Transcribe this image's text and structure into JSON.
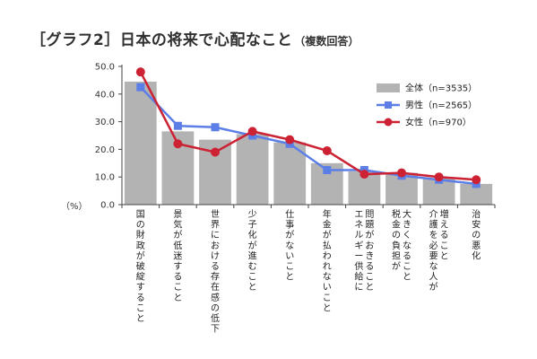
{
  "title": "［グラフ2］日本の将来で心配なこと",
  "subtitle": "（複数回答）",
  "ylabel": "（%）",
  "chart_data": {
    "type": "bar",
    "categories": [
      "国の財政が破綻すること",
      "景気が低迷すること",
      "世界における存在感の低下",
      "少子化が進むこと",
      "仕事がないこと",
      "年金が払われないこと",
      "問題がおきることエネルギー供給に",
      "大きくなること税金の負担が",
      "増えること介護を必要な人が",
      "治安の悪化"
    ],
    "category_lines": [
      [
        "国の財政が破綻すること"
      ],
      [
        "景気が低迷すること"
      ],
      [
        "世界における存在感の低下"
      ],
      [
        "少子化が進むこと"
      ],
      [
        "仕事がないこと"
      ],
      [
        "年金が払われないこと"
      ],
      [
        "問題がおきること",
        "エネルギー供給に"
      ],
      [
        "大きくなること",
        "税金の負担が"
      ],
      [
        "増えること",
        "介護を必要な人が"
      ],
      [
        "治安の悪化"
      ]
    ],
    "series": [
      {
        "name": "全体（n=3535）",
        "kind": "bar",
        "color": "#b3b3b3",
        "values": [
          44.5,
          26.5,
          23.5,
          25.5,
          22.5,
          15.0,
          12.0,
          11.5,
          9.5,
          7.5
        ]
      },
      {
        "name": "男性（n=2565）",
        "kind": "line",
        "color": "#5b7fe6",
        "values": [
          42.5,
          28.5,
          28.0,
          25.0,
          22.0,
          12.5,
          12.5,
          10.5,
          9.0,
          7.5
        ]
      },
      {
        "name": "女性（n=970）",
        "kind": "line",
        "color": "#cc2233",
        "values": [
          48.0,
          22.0,
          19.0,
          26.5,
          23.5,
          19.5,
          11.0,
          11.5,
          10.0,
          9.0
        ]
      }
    ],
    "yticks": [
      "0.0",
      "10.0",
      "20.0",
      "30.0",
      "40.0",
      "50.0"
    ],
    "ylim": [
      0,
      50
    ],
    "legend": "top-right",
    "grid": false
  }
}
